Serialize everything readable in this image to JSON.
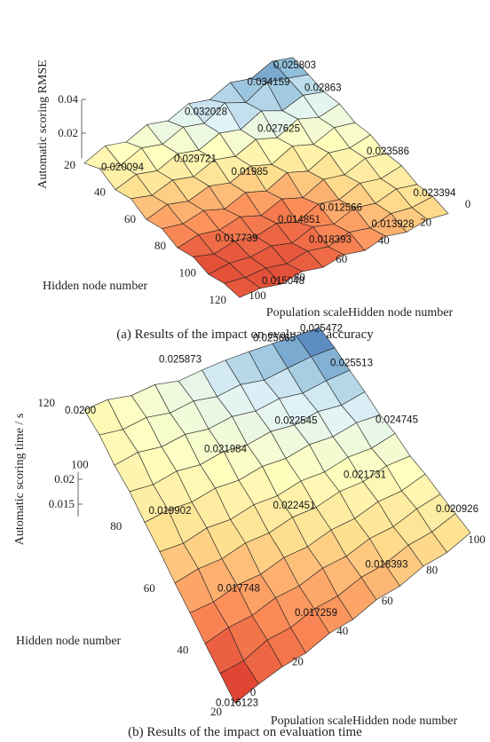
{
  "chart_data": [
    {
      "type": "surface",
      "zlabel": "Automatic scoring RMSE",
      "xlabel": "Population scaleHidden node number",
      "ylabel": "Hidden node number",
      "caption": "(a) Results of the impact on evaluation accuracy",
      "x": [
        0,
        10,
        20,
        30,
        40,
        50,
        60,
        70,
        80,
        90,
        100
      ],
      "y": [
        20,
        30,
        40,
        50,
        60,
        70,
        80,
        90,
        100,
        110,
        120
      ],
      "z": [
        [
          0.03,
          0.033,
          0.028,
          0.031,
          0.026,
          0.029,
          0.024,
          0.027,
          0.022,
          0.025,
          0.02
        ],
        [
          0.028,
          0.031,
          0.034,
          0.027,
          0.032,
          0.025,
          0.028,
          0.023,
          0.026,
          0.021,
          0.024
        ],
        [
          0.026,
          0.029,
          0.025,
          0.03,
          0.024,
          0.027,
          0.022,
          0.025,
          0.02,
          0.023,
          0.019
        ],
        [
          0.027,
          0.024,
          0.028,
          0.022,
          0.026,
          0.021,
          0.024,
          0.019,
          0.022,
          0.018,
          0.021
        ],
        [
          0.024,
          0.026,
          0.021,
          0.025,
          0.019,
          0.023,
          0.018,
          0.021,
          0.017,
          0.02,
          0.016
        ],
        [
          0.025,
          0.022,
          0.024,
          0.018,
          0.022,
          0.016,
          0.02,
          0.015,
          0.019,
          0.016,
          0.018
        ],
        [
          0.022,
          0.024,
          0.019,
          0.021,
          0.015,
          0.019,
          0.014,
          0.018,
          0.015,
          0.017,
          0.014
        ],
        [
          0.023,
          0.02,
          0.022,
          0.017,
          0.019,
          0.013,
          0.017,
          0.014,
          0.016,
          0.013,
          0.016
        ],
        [
          0.02,
          0.022,
          0.018,
          0.02,
          0.015,
          0.018,
          0.013,
          0.016,
          0.014,
          0.015,
          0.013
        ],
        [
          0.021,
          0.019,
          0.02,
          0.016,
          0.018,
          0.014,
          0.016,
          0.013,
          0.015,
          0.014,
          0.015
        ],
        [
          0.019,
          0.02,
          0.017,
          0.019,
          0.015,
          0.017,
          0.014,
          0.016,
          0.013,
          0.015,
          0.014
        ]
      ],
      "xlim": [
        0,
        100
      ],
      "ylim": [
        20,
        120
      ],
      "zlim": [
        0.005,
        0.04
      ],
      "xticks": [
        0,
        20,
        40,
        60,
        80,
        100
      ],
      "yticks": [
        20,
        40,
        60,
        80,
        100,
        120
      ],
      "zticks": [
        0.02,
        0.04
      ],
      "colormap": [
        "#d73027",
        "#fc8d59",
        "#fee090",
        "#ffffbf",
        "#e0f3f8",
        "#91bfdb",
        "#4575b4"
      ],
      "annotations": [
        {
          "x": 20,
          "y": 30,
          "value": 0.034159
        },
        {
          "x": 0,
          "y": 20,
          "value": 0.025803
        },
        {
          "x": 50,
          "y": 30,
          "value": 0.032028
        },
        {
          "x": 0,
          "y": 40,
          "value": 0.02863
        },
        {
          "x": 30,
          "y": 50,
          "value": 0.027625
        },
        {
          "x": 90,
          "y": 30,
          "value": 0.020094
        },
        {
          "x": 70,
          "y": 50,
          "value": 0.029721
        },
        {
          "x": 50,
          "y": 60,
          "value": 0.01985
        },
        {
          "x": 0,
          "y": 80,
          "value": 0.023586
        },
        {
          "x": 0,
          "y": 110,
          "value": 0.023394
        },
        {
          "x": 30,
          "y": 90,
          "value": 0.012566
        },
        {
          "x": 50,
          "y": 90,
          "value": 0.014851
        },
        {
          "x": 80,
          "y": 90,
          "value": 0.017739
        },
        {
          "x": 20,
          "y": 110,
          "value": 0.013928
        },
        {
          "x": 50,
          "y": 110,
          "value": 0.018393
        },
        {
          "x": 80,
          "y": 120,
          "value": 0.015048
        }
      ]
    },
    {
      "type": "surface",
      "zlabel": "Automatic scoring time / s",
      "xlabel": "Population scaleHidden node number",
      "ylabel": "Hidden node number",
      "caption": "(b) Results of the impact on evaluation time",
      "x": [
        0,
        10,
        20,
        30,
        40,
        50,
        60,
        70,
        80,
        90,
        100
      ],
      "y": [
        20,
        30,
        40,
        50,
        60,
        70,
        80,
        90,
        100,
        110,
        120
      ],
      "z": [
        [
          0.016,
          0.0168,
          0.0172,
          0.0169,
          0.0178,
          0.0175,
          0.0184,
          0.0181,
          0.019,
          0.0187,
          0.0196
        ],
        [
          0.0165,
          0.0162,
          0.0175,
          0.0171,
          0.018,
          0.0177,
          0.0186,
          0.0184,
          0.0193,
          0.0191,
          0.0199
        ],
        [
          0.017,
          0.0176,
          0.0173,
          0.0182,
          0.0179,
          0.0188,
          0.0185,
          0.0194,
          0.0191,
          0.02,
          0.0203
        ],
        [
          0.0177,
          0.0174,
          0.0183,
          0.018,
          0.0189,
          0.0186,
          0.0195,
          0.0193,
          0.0202,
          0.0199,
          0.0208
        ],
        [
          0.0182,
          0.0188,
          0.0185,
          0.0194,
          0.0191,
          0.02,
          0.0197,
          0.0206,
          0.0203,
          0.0212,
          0.0209
        ],
        [
          0.019,
          0.0186,
          0.0196,
          0.0192,
          0.0201,
          0.0198,
          0.0207,
          0.0204,
          0.0213,
          0.021,
          0.0219
        ],
        [
          0.0194,
          0.02,
          0.0197,
          0.0206,
          0.0203,
          0.0212,
          0.0209,
          0.0218,
          0.0215,
          0.0224,
          0.0221
        ],
        [
          0.0201,
          0.0198,
          0.0208,
          0.0204,
          0.0214,
          0.021,
          0.022,
          0.0216,
          0.0226,
          0.0222,
          0.0232
        ],
        [
          0.0199,
          0.021,
          0.0206,
          0.0216,
          0.0212,
          0.0222,
          0.0218,
          0.0228,
          0.0224,
          0.0234,
          0.024
        ],
        [
          0.0205,
          0.0203,
          0.0214,
          0.021,
          0.0221,
          0.0217,
          0.0228,
          0.0224,
          0.0235,
          0.0245,
          0.025
        ],
        [
          0.02,
          0.021,
          0.0207,
          0.0218,
          0.0214,
          0.0225,
          0.0234,
          0.024,
          0.0245,
          0.025,
          0.0255
        ]
      ],
      "xlim": [
        0,
        100
      ],
      "ylim": [
        20,
        120
      ],
      "zlim": [
        0.0125,
        0.0215
      ],
      "xticks": [
        0,
        20,
        40,
        60,
        80,
        100
      ],
      "yticks": [
        20,
        40,
        60,
        80,
        100,
        120
      ],
      "zticks": [
        0.015,
        0.02
      ],
      "colormap": [
        "#d73027",
        "#fc8d59",
        "#fee090",
        "#ffffbf",
        "#e0f3f8",
        "#91bfdb",
        "#4575b4"
      ],
      "annotations": [
        {
          "x": 100,
          "y": 120,
          "value": 0.025472
        },
        {
          "x": 80,
          "y": 120,
          "value": 0.025665
        },
        {
          "x": 40,
          "y": 120,
          "value": 0.025873
        },
        {
          "x": 100,
          "y": 100,
          "value": 0.025513
        },
        {
          "x": 100,
          "y": 70,
          "value": 0.024745
        },
        {
          "x": 0,
          "y": 120,
          "value": 0.02,
          "label": "0.0200"
        },
        {
          "x": 70,
          "y": 90,
          "value": 0.022545
        },
        {
          "x": 40,
          "y": 90,
          "value": 0.021984
        },
        {
          "x": 80,
          "y": 60,
          "value": 0.021731
        },
        {
          "x": 100,
          "y": 30,
          "value": 0.020926
        },
        {
          "x": 10,
          "y": 80,
          "value": 0.019902
        },
        {
          "x": 50,
          "y": 60,
          "value": 0.022451
        },
        {
          "x": 70,
          "y": 30,
          "value": 0.018393
        },
        {
          "x": 20,
          "y": 50,
          "value": 0.017748
        },
        {
          "x": 40,
          "y": 30,
          "value": 0.017259
        },
        {
          "x": 0,
          "y": 20,
          "value": 0.016123
        }
      ]
    }
  ]
}
